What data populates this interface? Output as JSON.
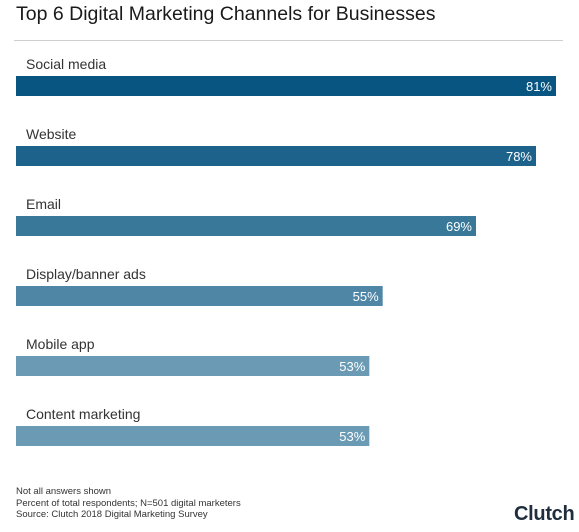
{
  "chart_data": {
    "type": "bar",
    "orientation": "horizontal",
    "title": "Top 6 Digital Marketing Channels for Businesses",
    "categories": [
      "Social media",
      "Website",
      "Email",
      "Display/banner ads",
      "Mobile app",
      "Content marketing"
    ],
    "values": [
      81,
      78,
      69,
      55,
      53,
      53
    ],
    "value_labels": [
      "81%",
      "78%",
      "69%",
      "55%",
      "53%",
      "53%"
    ],
    "xlim": [
      0,
      81
    ],
    "bar_colors": [
      "#075580",
      "#1d628a",
      "#397898",
      "#4f86a6",
      "#6b9bb4",
      "#6b9bb4"
    ],
    "grid": false
  },
  "notes": [
    "Not all answers shown",
    "Percent of total respondents; N=501 digital marketers",
    "Source: Clutch 2018 Digital Marketing Survey"
  ],
  "brand": {
    "name": "Clutch",
    "dot_color": "#e8453c"
  }
}
